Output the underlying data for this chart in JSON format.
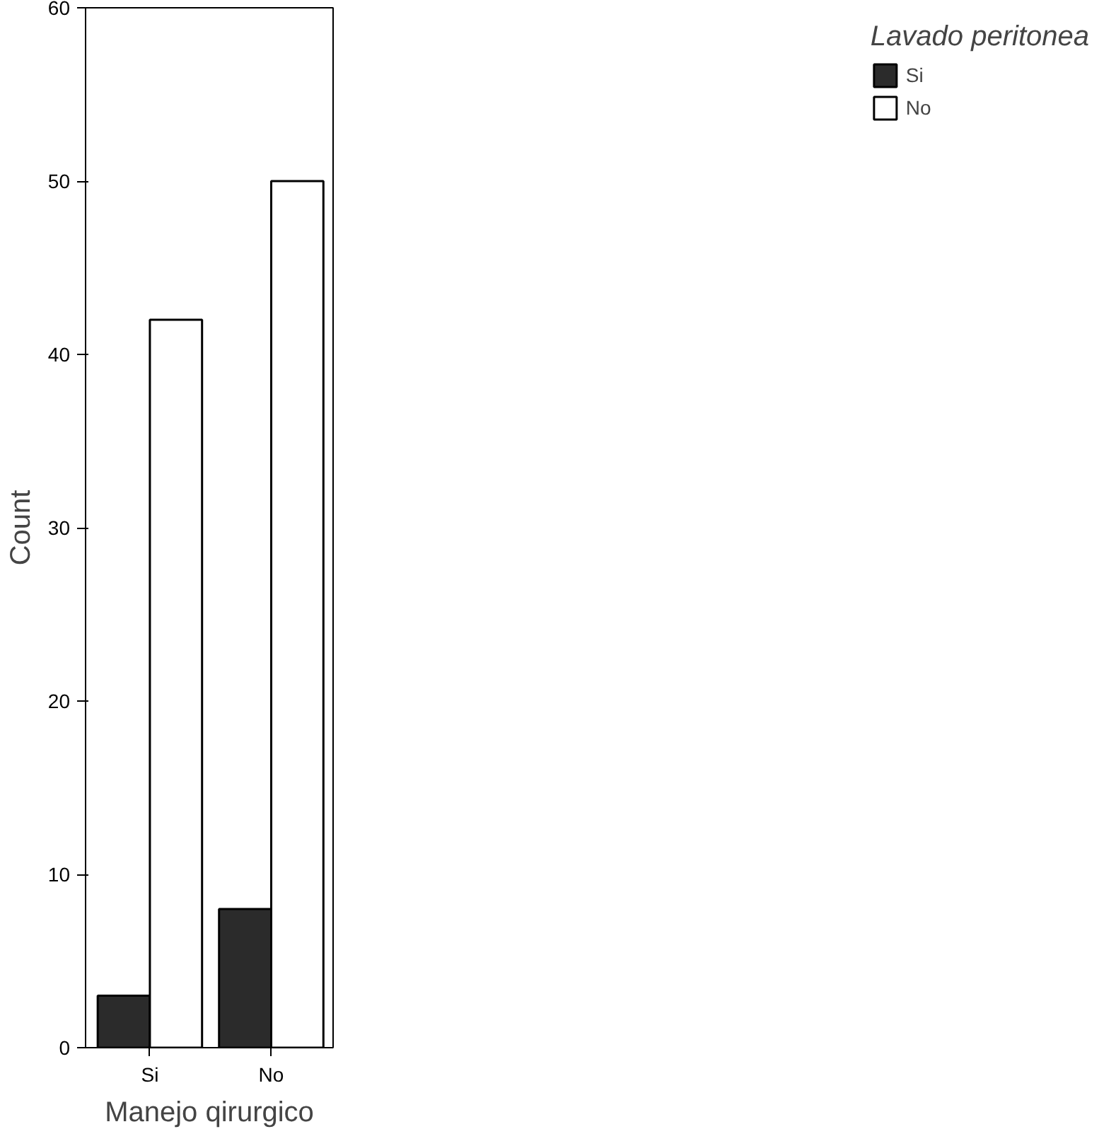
{
  "chart_data": {
    "type": "bar",
    "categories": [
      "Si",
      "No"
    ],
    "xlabel": "Manejo qirurgico",
    "ylabel": "Count",
    "legend_title": "Lavado peritonea",
    "series": [
      {
        "name": "Si",
        "color": "#2b2b2b",
        "values": [
          3,
          8
        ]
      },
      {
        "name": "No",
        "color": "#ffffff",
        "values": [
          42,
          50
        ]
      }
    ],
    "ylim": [
      0,
      60
    ],
    "yticks": [
      0,
      10,
      20,
      30,
      40,
      50,
      60
    ],
    "grid": false,
    "legend": "right"
  }
}
